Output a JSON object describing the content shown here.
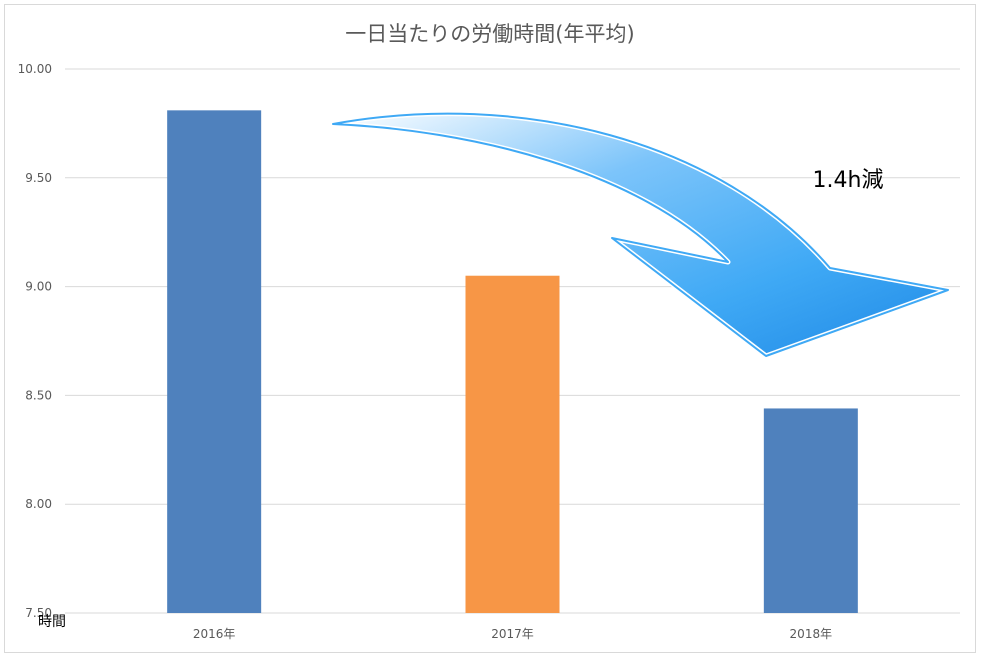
{
  "chart_data": {
    "type": "bar",
    "title": "一日当たりの労働時間(年平均)",
    "ylabel": "時間",
    "xlabel": "",
    "categories": [
      "2016年",
      "2017年",
      "2018年"
    ],
    "values": [
      9.81,
      9.05,
      8.44
    ],
    "bar_colors": [
      "#4f81bd",
      "#f79646",
      "#4f81bd"
    ],
    "ylim": [
      7.5,
      10.0
    ],
    "yticks": [
      "10.00",
      "9.50",
      "9.00",
      "8.50",
      "8.00",
      "7.50"
    ],
    "ytick_values": [
      10.0,
      9.5,
      9.0,
      8.5,
      8.0,
      7.5
    ],
    "grid": true,
    "annotation": {
      "text": "1.4h減",
      "arrow_icon": "curved-down-arrow-icon",
      "arrow_color": "#3fa9f5"
    }
  }
}
